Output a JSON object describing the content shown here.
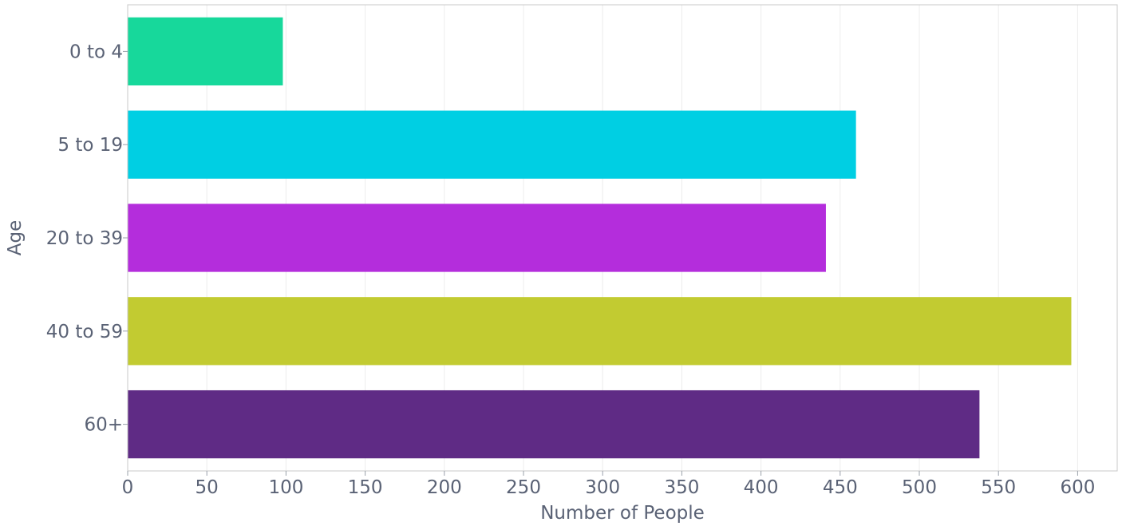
{
  "chart_data": {
    "type": "bar",
    "orientation": "horizontal",
    "title": "",
    "xlabel": "Number of People",
    "ylabel": "Age",
    "xlim": [
      0,
      625
    ],
    "x_ticks": [
      0,
      50,
      100,
      150,
      200,
      250,
      300,
      350,
      400,
      450,
      500,
      550,
      600
    ],
    "categories": [
      "0 to 4",
      "5 to 19",
      "20 to 39",
      "40 to 59",
      "60+"
    ],
    "values": [
      98,
      460,
      441,
      596,
      538
    ],
    "colors": [
      "#17d89b",
      "#00cfe3",
      "#b42ddc",
      "#c2cb31",
      "#5f2b85"
    ],
    "grid": true,
    "legend": false
  }
}
